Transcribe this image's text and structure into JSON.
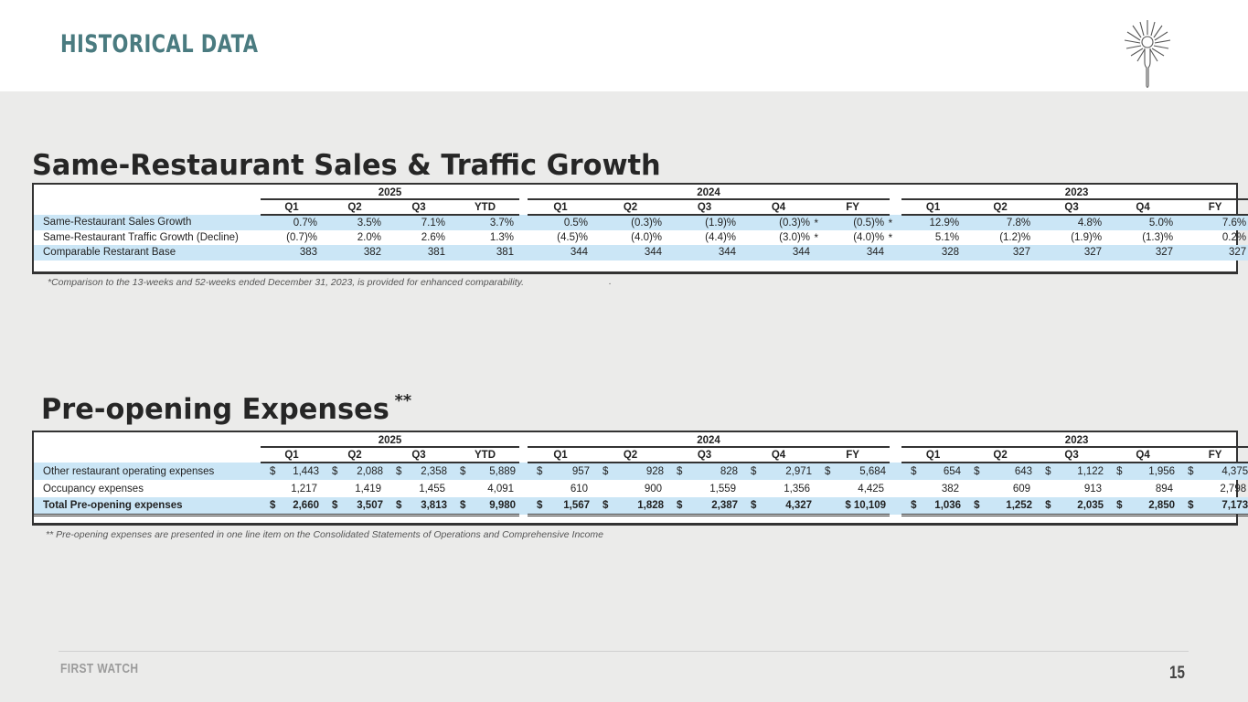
{
  "header": {
    "title": "HISTORICAL DATA"
  },
  "logo": {
    "icon": "fork-icon"
  },
  "section1": {
    "heading": "Same-Restaurant Sales & Traffic Growth",
    "years": [
      "2025",
      "2024",
      "2023"
    ],
    "quarters_2025": [
      "Q1",
      "Q2",
      "Q3",
      "YTD"
    ],
    "quarters_2024": [
      "Q1",
      "Q2",
      "Q3",
      "Q4",
      "FY"
    ],
    "quarters_2023": [
      "Q1",
      "Q2",
      "Q3",
      "Q4",
      "FY"
    ],
    "rows": [
      {
        "label": "Same-Restaurant Sales Growth",
        "values": [
          "0.7%",
          "3.5%",
          "7.1%",
          "3.7%",
          "0.5%",
          "(0.3)%",
          "(1.9)%",
          "(0.3)%",
          "(0.5)%",
          "12.9%",
          "7.8%",
          "4.8%",
          "5.0%",
          "7.6%"
        ]
      },
      {
        "label": "Same-Restaurant Traffic Growth (Decline)",
        "values": [
          "(0.7)%",
          "2.0%",
          "2.6%",
          "1.3%",
          "(4.5)%",
          "(4.0)%",
          "(4.4)%",
          "(3.0)%",
          "(4.0)%",
          "5.1%",
          "(1.2)%",
          "(1.9)%",
          "(1.3)%",
          "0.2%"
        ]
      },
      {
        "label": "Comparable Restarant Base",
        "values": [
          "383",
          "382",
          "381",
          "381",
          "344",
          "344",
          "344",
          "344",
          "344",
          "328",
          "327",
          "327",
          "327",
          "327"
        ]
      }
    ],
    "star": "*",
    "footnote": "*Comparison to the 13-weeks and 52-weeks ended December 31, 2023, is provided for enhanced comparability.",
    "footnote_dot": "."
  },
  "section2": {
    "heading": "Pre-opening Expenses",
    "heading_mark": "**",
    "years": [
      "2025",
      "2024",
      "2023"
    ],
    "quarters_2025": [
      "Q1",
      "Q2",
      "Q3",
      "YTD"
    ],
    "quarters_2024": [
      "Q1",
      "Q2",
      "Q3",
      "Q4",
      "FY"
    ],
    "quarters_2023": [
      "Q1",
      "Q2",
      "Q3",
      "Q4",
      "FY"
    ],
    "currency": "$",
    "rows": [
      {
        "label": "Other restaurant operating expenses",
        "values": [
          "1,443",
          "2,088",
          "2,358",
          "5,889",
          "957",
          "928",
          "828",
          "2,971",
          "5,684",
          "654",
          "643",
          "1,122",
          "1,956",
          "4,375"
        ]
      },
      {
        "label": "Occupancy expenses",
        "values": [
          "1,217",
          "1,419",
          "1,455",
          "4,091",
          "610",
          "900",
          "1,559",
          "1,356",
          "4,425",
          "382",
          "609",
          "913",
          "894",
          "2,798"
        ]
      },
      {
        "label": "Total Pre-opening expenses",
        "values": [
          "2,660",
          "3,507",
          "3,813",
          "9,980",
          "1,567",
          "1,828",
          "2,387",
          "4,327",
          "$ 10,109",
          "1,036",
          "1,252",
          "2,035",
          "2,850",
          "7,173"
        ]
      }
    ],
    "footnote": "** Pre-opening expenses are presented in one line item on the Consolidated Statements of Operations and Comprehensive Income"
  },
  "footer": {
    "brand": "FIRST WATCH",
    "page_number": "15"
  }
}
